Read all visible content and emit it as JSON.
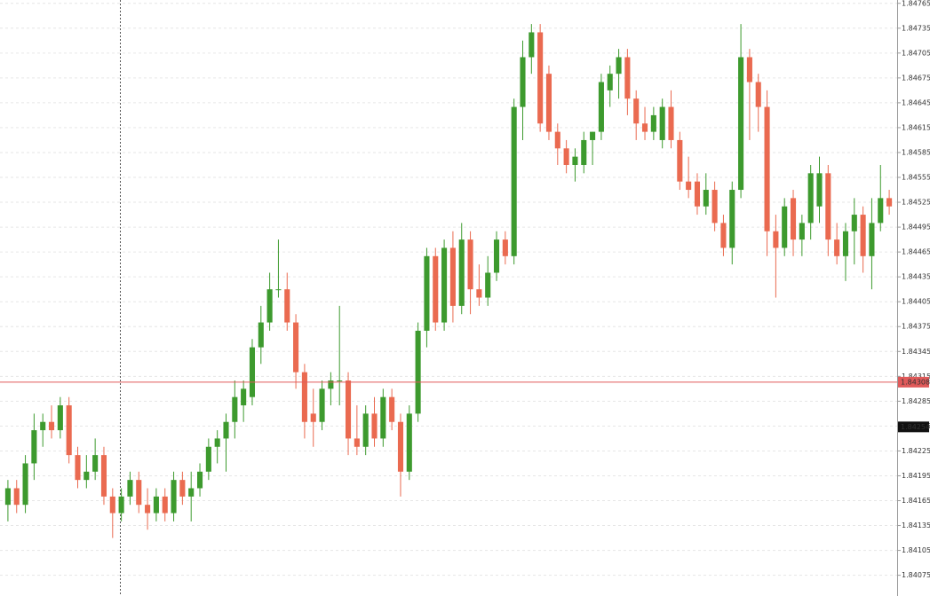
{
  "chart_data": {
    "type": "candlestick",
    "ylim": [
      1.8405,
      1.84769
    ],
    "yticks": [
      1.84765,
      1.84735,
      1.84705,
      1.84675,
      1.84645,
      1.84615,
      1.84585,
      1.84555,
      1.84525,
      1.84495,
      1.84465,
      1.84435,
      1.84405,
      1.84375,
      1.84345,
      1.84315,
      1.84285,
      1.84255,
      1.84225,
      1.84195,
      1.84165,
      1.84135,
      1.84105,
      1.84075
    ],
    "grid": true,
    "up_color": "#3d9a2e",
    "down_color": "#ea6a50",
    "hline": {
      "value": 1.84308,
      "color": "#e05a5a"
    },
    "price_marker": 1.84254,
    "open": [
      1.8416,
      1.8418,
      1.8416,
      1.8421,
      1.8425,
      1.8426,
      1.8425,
      1.8428,
      1.8422,
      1.8419,
      1.842,
      1.8422,
      1.8417,
      1.8415,
      1.8417,
      1.8419,
      1.8416,
      1.8415,
      1.8417,
      1.8415,
      1.8419,
      1.8417,
      1.8418,
      1.842,
      1.8423,
      1.8424,
      1.8426,
      1.8428,
      1.8429,
      1.8435,
      1.8438,
      1.8442,
      1.8442,
      1.8438,
      1.8432,
      1.8427,
      1.8426,
      1.843,
      1.8431,
      1.8431,
      1.8424,
      1.8423,
      1.8427,
      1.8424,
      1.8429,
      1.8426,
      1.842,
      1.8427,
      1.8437,
      1.8446,
      1.8438,
      1.8447,
      1.844,
      1.8448,
      1.8442,
      1.8441,
      1.8444,
      1.8448,
      1.8446,
      1.8464,
      1.847,
      1.8473,
      1.8468,
      1.8461,
      1.8459,
      1.8457,
      1.8457,
      1.846,
      1.8461,
      1.8466,
      1.8468,
      1.847,
      1.8465,
      1.8462,
      1.8461,
      1.846,
      1.8464,
      1.846,
      1.8455,
      1.8455,
      1.8452,
      1.8454,
      1.845,
      1.8447,
      1.8454,
      1.847,
      1.8467,
      1.8464,
      1.8449,
      1.8447,
      1.8453,
      1.8448,
      1.845,
      1.8452,
      1.8456,
      1.8448,
      1.8446,
      1.8449,
      1.8451,
      1.8446,
      1.845,
      1.8453
    ],
    "high": [
      1.8419,
      1.8419,
      1.8422,
      1.8427,
      1.8427,
      1.8428,
      1.8429,
      1.8429,
      1.8423,
      1.8422,
      1.8424,
      1.8423,
      1.8418,
      1.8418,
      1.842,
      1.842,
      1.8418,
      1.8418,
      1.8418,
      1.842,
      1.842,
      1.842,
      1.8421,
      1.8424,
      1.8425,
      1.8427,
      1.8431,
      1.8431,
      1.8436,
      1.844,
      1.8444,
      1.8448,
      1.8444,
      1.8439,
      1.8433,
      1.843,
      1.8431,
      1.8432,
      1.844,
      1.8432,
      1.8428,
      1.8428,
      1.8429,
      1.843,
      1.843,
      1.8427,
      1.8428,
      1.8438,
      1.8447,
      1.8447,
      1.8448,
      1.8449,
      1.845,
      1.8449,
      1.8445,
      1.8446,
      1.8449,
      1.8449,
      1.8465,
      1.8472,
      1.8474,
      1.8474,
      1.8469,
      1.8462,
      1.846,
      1.8459,
      1.8461,
      1.8461,
      1.8468,
      1.8469,
      1.8471,
      1.8471,
      1.8466,
      1.8464,
      1.8464,
      1.8465,
      1.8466,
      1.8461,
      1.8458,
      1.8456,
      1.8456,
      1.8455,
      1.8451,
      1.8455,
      1.8474,
      1.8471,
      1.8468,
      1.8466,
      1.8451,
      1.8453,
      1.8454,
      1.8451,
      1.8457,
      1.8458,
      1.8457,
      1.845,
      1.845,
      1.8453,
      1.8452,
      1.8453,
      1.8457,
      1.8454
    ],
    "low": [
      1.8414,
      1.8415,
      1.8415,
      1.8419,
      1.8423,
      1.8424,
      1.8424,
      1.8421,
      1.8418,
      1.8418,
      1.8419,
      1.8416,
      1.8412,
      1.8414,
      1.8416,
      1.8415,
      1.8413,
      1.8414,
      1.8414,
      1.8414,
      1.8416,
      1.8414,
      1.8417,
      1.8419,
      1.8421,
      1.842,
      1.8424,
      1.8426,
      1.8428,
      1.8433,
      1.8437,
      1.8441,
      1.8437,
      1.843,
      1.8424,
      1.8423,
      1.8425,
      1.8428,
      1.8428,
      1.8422,
      1.8422,
      1.8422,
      1.8423,
      1.8423,
      1.8425,
      1.8417,
      1.8419,
      1.8426,
      1.8435,
      1.8437,
      1.8437,
      1.8438,
      1.8439,
      1.8439,
      1.844,
      1.844,
      1.8443,
      1.8445,
      1.8445,
      1.846,
      1.8468,
      1.8461,
      1.846,
      1.8457,
      1.8456,
      1.8455,
      1.8456,
      1.8457,
      1.846,
      1.8464,
      1.8465,
      1.8463,
      1.846,
      1.846,
      1.846,
      1.8459,
      1.8459,
      1.8454,
      1.8453,
      1.8451,
      1.8451,
      1.8449,
      1.8446,
      1.8445,
      1.8453,
      1.846,
      1.8461,
      1.8446,
      1.8441,
      1.8446,
      1.8446,
      1.8446,
      1.8448,
      1.845,
      1.8446,
      1.8445,
      1.8443,
      1.8445,
      1.8444,
      1.8442,
      1.8449,
      1.8451
    ],
    "close": [
      1.8418,
      1.8416,
      1.8421,
      1.8425,
      1.8426,
      1.8425,
      1.8428,
      1.8422,
      1.8419,
      1.842,
      1.8422,
      1.8417,
      1.8415,
      1.8417,
      1.8419,
      1.8416,
      1.8415,
      1.8417,
      1.8415,
      1.8419,
      1.8417,
      1.8418,
      1.842,
      1.8423,
      1.8424,
      1.8426,
      1.8429,
      1.843,
      1.8435,
      1.8438,
      1.8442,
      1.8442,
      1.8438,
      1.8432,
      1.8426,
      1.8426,
      1.843,
      1.8431,
      1.8431,
      1.8424,
      1.8423,
      1.8427,
      1.8424,
      1.8429,
      1.8426,
      1.842,
      1.8427,
      1.8437,
      1.8446,
      1.8438,
      1.8447,
      1.844,
      1.8448,
      1.8442,
      1.8441,
      1.8444,
      1.8448,
      1.8446,
      1.8464,
      1.847,
      1.8473,
      1.8462,
      1.8461,
      1.8459,
      1.8457,
      1.8458,
      1.846,
      1.8461,
      1.8467,
      1.8468,
      1.847,
      1.8465,
      1.8462,
      1.8461,
      1.8463,
      1.8464,
      1.846,
      1.8455,
      1.8454,
      1.8452,
      1.8454,
      1.845,
      1.8447,
      1.8454,
      1.847,
      1.8467,
      1.8464,
      1.8449,
      1.8447,
      1.8452,
      1.8448,
      1.845,
      1.8456,
      1.8456,
      1.8448,
      1.8446,
      1.8449,
      1.8451,
      1.8446,
      1.845,
      1.8453,
      1.8452
    ]
  }
}
